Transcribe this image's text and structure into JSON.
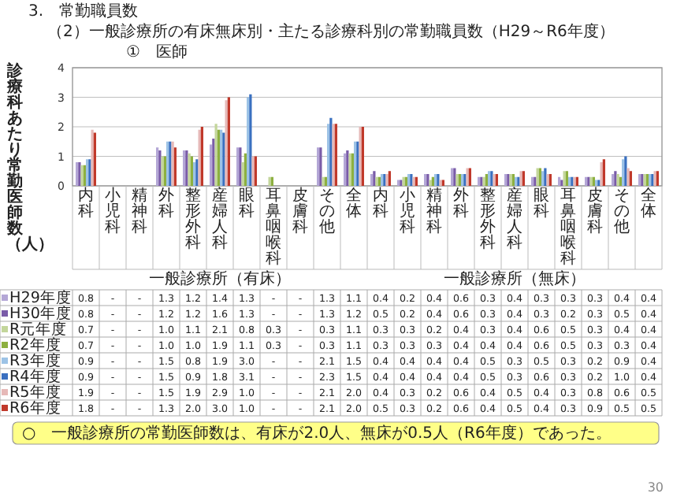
{
  "chart_data": {
    "type": "bar",
    "title": "3.　常勤職員数",
    "subtitle": "（2）一般診療所の有床無床別・主たる診療科別の常勤職員数（H29～R6年度）",
    "ylabel": "診療科あたり常勤医師数（人）",
    "categories": [
      "内科",
      "小児科",
      "精神科",
      "外科",
      "整形外科",
      "産婦人科",
      "眼科",
      "耳鼻咽喉科",
      "皮膚科",
      "その他",
      "全体",
      "内科",
      "小児科",
      "精神科",
      "外科",
      "整形外科",
      "産婦人科",
      "眼科",
      "耳鼻咽喉科",
      "皮膚科",
      "その他",
      "全体"
    ],
    "series": [
      {
        "name": "H29年度",
        "color": "#b4a7d6",
        "values": [
          0.8,
          null,
          null,
          1.3,
          1.2,
          1.4,
          1.3,
          null,
          null,
          1.3,
          1.1,
          0.4,
          0.2,
          0.4,
          0.6,
          0.3,
          0.4,
          0.3,
          0.3,
          0.3,
          0.4,
          0.4
        ],
        "value_labels": [
          "0.8",
          "-",
          "-",
          "1.3",
          "1.2",
          "1.4",
          "1.3",
          "-",
          "-",
          "1.3",
          "1.1",
          "0.4",
          "0.2",
          "0.4",
          "0.6",
          "0.3",
          "0.4",
          "0.3",
          "0.3",
          "0.3",
          "0.4",
          "0.4"
        ]
      },
      {
        "name": "H30年度",
        "color": "#7a5ca8",
        "values": [
          0.8,
          null,
          null,
          1.2,
          1.2,
          1.6,
          1.3,
          null,
          null,
          1.3,
          1.2,
          0.5,
          0.2,
          0.4,
          0.6,
          0.3,
          0.4,
          0.3,
          0.2,
          0.3,
          0.5,
          0.4
        ],
        "value_labels": [
          "0.8",
          "-",
          "-",
          "1.2",
          "1.2",
          "1.6",
          "1.3",
          "-",
          "-",
          "1.3",
          "1.2",
          "0.5",
          "0.2",
          "0.4",
          "0.6",
          "0.3",
          "0.4",
          "0.3",
          "0.2",
          "0.3",
          "0.5",
          "0.4"
        ]
      },
      {
        "name": "R元年度",
        "color": "#c3d69b",
        "values": [
          0.7,
          null,
          null,
          1.0,
          1.1,
          2.1,
          0.8,
          0.3,
          null,
          0.3,
          1.1,
          0.3,
          0.3,
          0.2,
          0.4,
          0.3,
          0.4,
          0.6,
          0.5,
          0.3,
          0.4,
          0.4
        ],
        "value_labels": [
          "0.7",
          "-",
          "-",
          "1.0",
          "1.1",
          "2.1",
          "0.8",
          "0.3",
          "-",
          "0.3",
          "1.1",
          "0.3",
          "0.3",
          "0.2",
          "0.4",
          "0.3",
          "0.4",
          "0.6",
          "0.5",
          "0.3",
          "0.4",
          "0.4"
        ]
      },
      {
        "name": "R2年度",
        "color": "#8db040",
        "values": [
          0.7,
          null,
          null,
          1.0,
          1.0,
          1.9,
          1.1,
          0.3,
          null,
          0.3,
          1.1,
          0.3,
          0.3,
          0.3,
          0.4,
          0.4,
          0.4,
          0.6,
          0.5,
          0.3,
          0.3,
          0.4
        ],
        "value_labels": [
          "0.7",
          "-",
          "-",
          "1.0",
          "1.0",
          "1.9",
          "1.1",
          "0.3",
          "-",
          "0.3",
          "1.1",
          "0.3",
          "0.3",
          "0.3",
          "0.4",
          "0.4",
          "0.4",
          "0.6",
          "0.5",
          "0.3",
          "0.3",
          "0.4"
        ]
      },
      {
        "name": "R3年度",
        "color": "#9dc3e6",
        "values": [
          0.9,
          null,
          null,
          1.5,
          0.8,
          1.9,
          3.0,
          null,
          null,
          2.1,
          1.5,
          0.4,
          0.4,
          0.4,
          0.4,
          0.5,
          0.3,
          0.5,
          0.3,
          0.2,
          0.9,
          0.4
        ],
        "value_labels": [
          "0.9",
          "-",
          "-",
          "1.5",
          "0.8",
          "1.9",
          "3.0",
          "-",
          "-",
          "2.1",
          "1.5",
          "0.4",
          "0.4",
          "0.4",
          "0.4",
          "0.5",
          "0.3",
          "0.5",
          "0.3",
          "0.2",
          "0.9",
          "0.4"
        ]
      },
      {
        "name": "R4年度",
        "color": "#3a70c0",
        "values": [
          0.9,
          null,
          null,
          1.5,
          0.9,
          1.8,
          3.1,
          null,
          null,
          2.3,
          1.5,
          0.4,
          0.4,
          0.4,
          0.4,
          0.5,
          0.3,
          0.6,
          0.3,
          0.2,
          1.0,
          0.4
        ],
        "value_labels": [
          "0.9",
          "-",
          "-",
          "1.5",
          "0.9",
          "1.8",
          "3.1",
          "-",
          "-",
          "2.3",
          "1.5",
          "0.4",
          "0.4",
          "0.4",
          "0.4",
          "0.5",
          "0.3",
          "0.6",
          "0.3",
          "0.2",
          "1.0",
          "0.4"
        ]
      },
      {
        "name": "R5年度",
        "color": "#e6b9b8",
        "values": [
          1.9,
          null,
          null,
          1.5,
          1.9,
          2.9,
          1.0,
          null,
          null,
          2.1,
          2.0,
          0.4,
          0.3,
          0.2,
          0.6,
          0.4,
          0.5,
          0.4,
          0.3,
          0.8,
          0.6,
          0.5
        ],
        "value_labels": [
          "1.9",
          "-",
          "-",
          "1.5",
          "1.9",
          "2.9",
          "1.0",
          "-",
          "-",
          "2.1",
          "2.0",
          "0.4",
          "0.3",
          "0.2",
          "0.6",
          "0.4",
          "0.5",
          "0.4",
          "0.3",
          "0.8",
          "0.6",
          "0.5"
        ]
      },
      {
        "name": "R6年度",
        "color": "#c0392b",
        "values": [
          1.8,
          null,
          null,
          1.3,
          2.0,
          3.0,
          1.0,
          null,
          null,
          2.1,
          2.0,
          0.5,
          0.3,
          0.2,
          0.6,
          0.4,
          0.5,
          0.4,
          0.3,
          0.9,
          0.5,
          0.5
        ],
        "value_labels": [
          "1.8",
          "-",
          "-",
          "1.3",
          "2.0",
          "3.0",
          "1.0",
          "-",
          "-",
          "2.1",
          "2.0",
          "0.5",
          "0.3",
          "0.2",
          "0.6",
          "0.4",
          "0.5",
          "0.4",
          "0.3",
          "0.9",
          "0.5",
          "0.5"
        ]
      }
    ],
    "ylim": [
      0,
      4
    ],
    "yticks": [
      0,
      1,
      2,
      3,
      4
    ],
    "grid": "y",
    "legend": "bottom",
    "annotations": [
      "①　医師",
      "一般診療所（有床）",
      "一般診療所（無床）",
      "○　一般診療所の常勤医師数は、有床が2.0人、無床が0.5人（R6年度）であった。",
      "30"
    ]
  }
}
